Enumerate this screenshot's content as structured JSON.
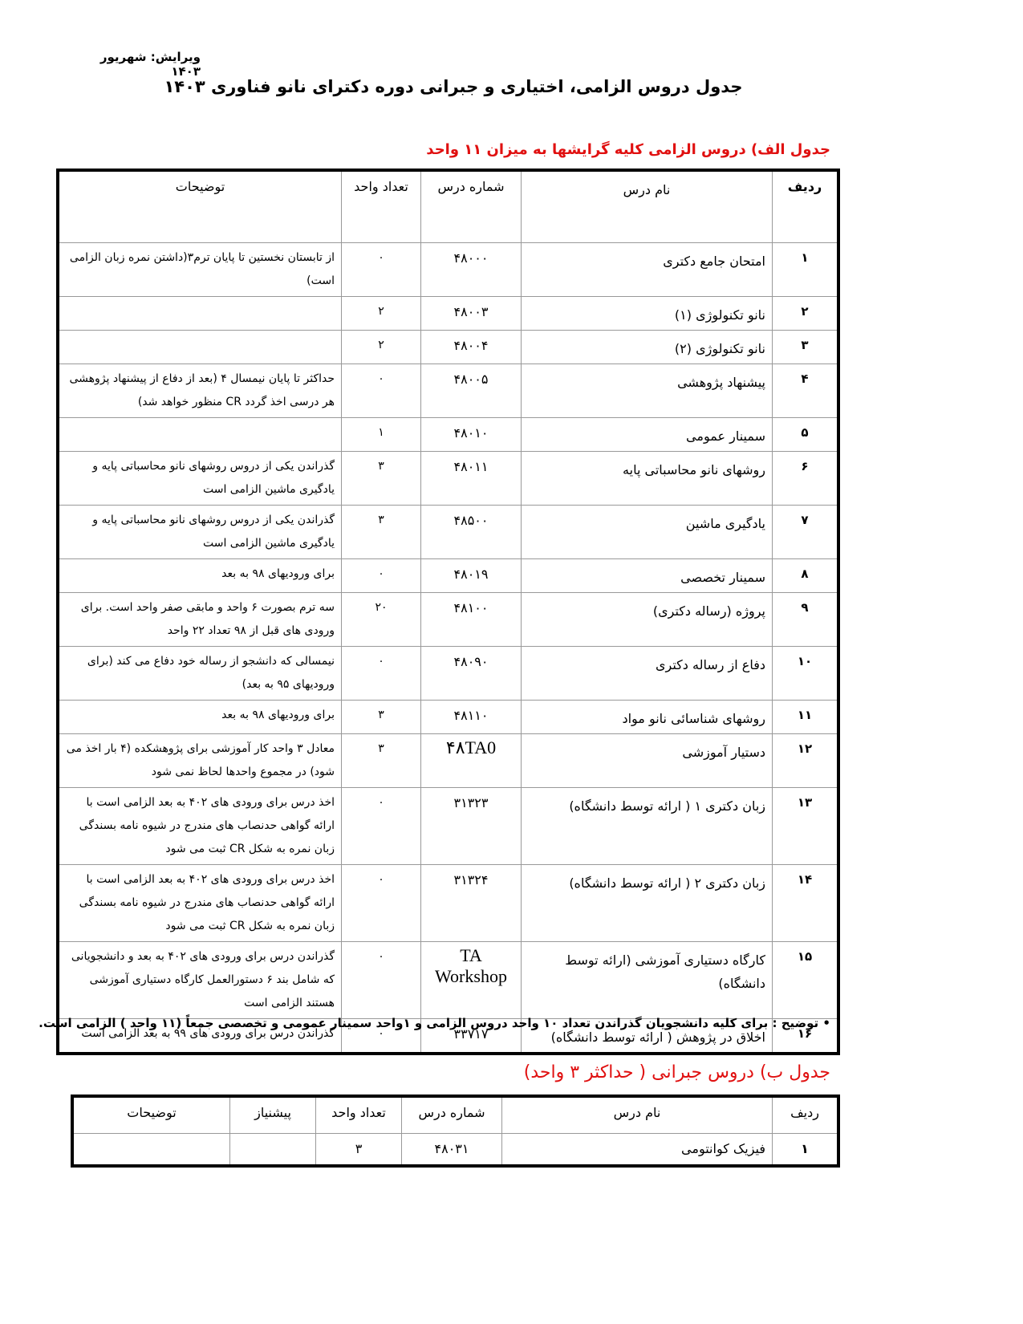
{
  "edition": "ویرایش: شهریور ۱۴۰۳",
  "title": "جدول دروس الزامی، اختیاری و جبرانی دوره دکترای نانو فناوری ۱۴۰۳",
  "table_a": {
    "caption": "جدول الف) دروس الزامی کلیه گرایشها  به میزان ۱۱ واحد",
    "headers": {
      "row": "ردیف",
      "name": "نام درس",
      "number": "شماره درس",
      "units": "تعداد واحد",
      "desc": "توضیحات"
    },
    "rows": [
      {
        "row": "۱",
        "name": "امتحان جامع دکتری",
        "number": "۴۸۰۰۰",
        "units": "۰",
        "desc": "از تابستان نخستین تا پایان ترم۳(داشتن نمره زبان الزامی است)"
      },
      {
        "row": "۲",
        "name": "نانو تکنولوژی (۱)",
        "number": "۴۸۰۰۳",
        "units": "۲",
        "desc": ""
      },
      {
        "row": "۳",
        "name": "نانو تکنولوژی (۲)",
        "number": "۴۸۰۰۴",
        "units": "۲",
        "desc": ""
      },
      {
        "row": "۴",
        "name": "پیشنهاد پژوهشی",
        "number": "۴۸۰۰۵",
        "units": "۰",
        "desc": "حداکثر تا پایان نیمسال ۴ (بعد از دفاع از پیشنهاد پژوهشی هر درسی اخذ گردد CR منظور خواهد شد)"
      },
      {
        "row": "۵",
        "name": "سمینار عمومی",
        "number": "۴۸۰۱۰",
        "units": "۱",
        "desc": ""
      },
      {
        "row": "۶",
        "name": "روشهای نانو محاسباتی پایه",
        "number": "۴۸۰۱۱",
        "units": "۳",
        "desc": "گذراندن یکی از دروس روشهای نانو محاسباتی پایه و یادگیری ماشین الزامی است"
      },
      {
        "row": "۷",
        "name": "یادگیری ماشین",
        "number": "۴۸۵۰۰",
        "units": "۳",
        "desc": "گذراندن یکی از دروس روشهای نانو محاسباتی پایه و یادگیری ماشین الزامی است"
      },
      {
        "row": "۸",
        "name": "سمینار تخصصی",
        "number": "۴۸۰۱۹",
        "units": "۰",
        "desc": "برای ورودیهای ۹۸ به بعد"
      },
      {
        "row": "۹",
        "name": "پروژه (رساله دکتری)",
        "number": "۴۸۱۰۰",
        "units": "۲۰",
        "desc": "سه ترم بصورت ۶ واحد و مابقی صفر واحد است. برای ورودی های قبل از ۹۸ تعداد ۲۲ واحد"
      },
      {
        "row": "۱۰",
        "name": "دفاع از رساله دکتری",
        "number": "۴۸۰۹۰",
        "units": "۰",
        "desc": "نیمسالی که دانشجو از رساله خود دفاع می کند (برای ورودیهای ۹۵ به بعد)"
      },
      {
        "row": "۱۱",
        "name": "روشهای شناسائی نانو مواد",
        "number": "۴۸۱۱۰",
        "units": "۳",
        "desc": "برای ورودیهای ۹۸ به بعد"
      },
      {
        "row": "۱۲",
        "name": "دستیار آموزشی",
        "number": "۴۸TA0",
        "units": "۳",
        "desc": "معادل ۳ واحد کار آموزشی برای پژوهشکده (۴ بار اخذ می شود) در مجموع واحدها لحاظ نمی شود"
      },
      {
        "row": "۱۳",
        "name": "زبان دکتری ۱ ( ارائه توسط دانشگاه)",
        "number": "۳۱۳۲۳",
        "units": "۰",
        "desc": "اخذ درس برای ورودی های ۴۰۲ به بعد الزامی است با ارائه گواهی حدنصاب های مندرج در شیوه نامه بسندگی زبان نمره به شکل CR ثبت می شود"
      },
      {
        "row": "۱۴",
        "name": "زبان دکتری ۲ ( ارائه توسط دانشگاه)",
        "number": "۳۱۳۲۴",
        "units": "۰",
        "desc": "اخذ درس برای ورودی های ۴۰۲ به بعد الزامی است با ارائه گواهی حدنصاب های مندرج در شیوه نامه بسندگی زبان نمره به شکل CR ثبت می شود"
      },
      {
        "row": "۱۵",
        "name": "کارگاه دستیاری آموزشی (ارائه توسط دانشگاه)",
        "number": "TA Workshop",
        "units": "۰",
        "desc": "گذراندن درس برای ورودی های ۴۰۲ به بعد و دانشجویانی که شامل بند ۶  دستورالعمل کارگاه دستیاری آموزشی هستند الزامی است"
      },
      {
        "row": "۱۶",
        "name": "اخلاق در پژوهش ( ارائه توسط دانشگاه)",
        "number": "۳۳۷۱۷",
        "units": "۰",
        "desc": "گذراندن درس برای ورودی های ۹۹ به بعد الزامی است"
      }
    ]
  },
  "note": "• توضیح : برای کلیه دانشجویان گذراندن تعداد ۱۰ واحد دروس الزامی و ۱واحد سمینار  عمومی و تخصصی جمعاً (۱۱ واحد ) الزامی است.",
  "table_b": {
    "caption": "جدول ب) دروس جبرانی ( حداکثر ۳ واحد)",
    "headers": {
      "row": "ردیف",
      "name": "نام درس",
      "number": "شماره درس",
      "units": "تعداد واحد",
      "prereq": "پیشنیاز",
      "desc": "توضیحات"
    },
    "rows": [
      {
        "row": "۱",
        "name": "فیزیک کوانتومی",
        "number": "۴۸۰۳۱",
        "units": "۳",
        "prereq": "",
        "desc": ""
      }
    ]
  }
}
